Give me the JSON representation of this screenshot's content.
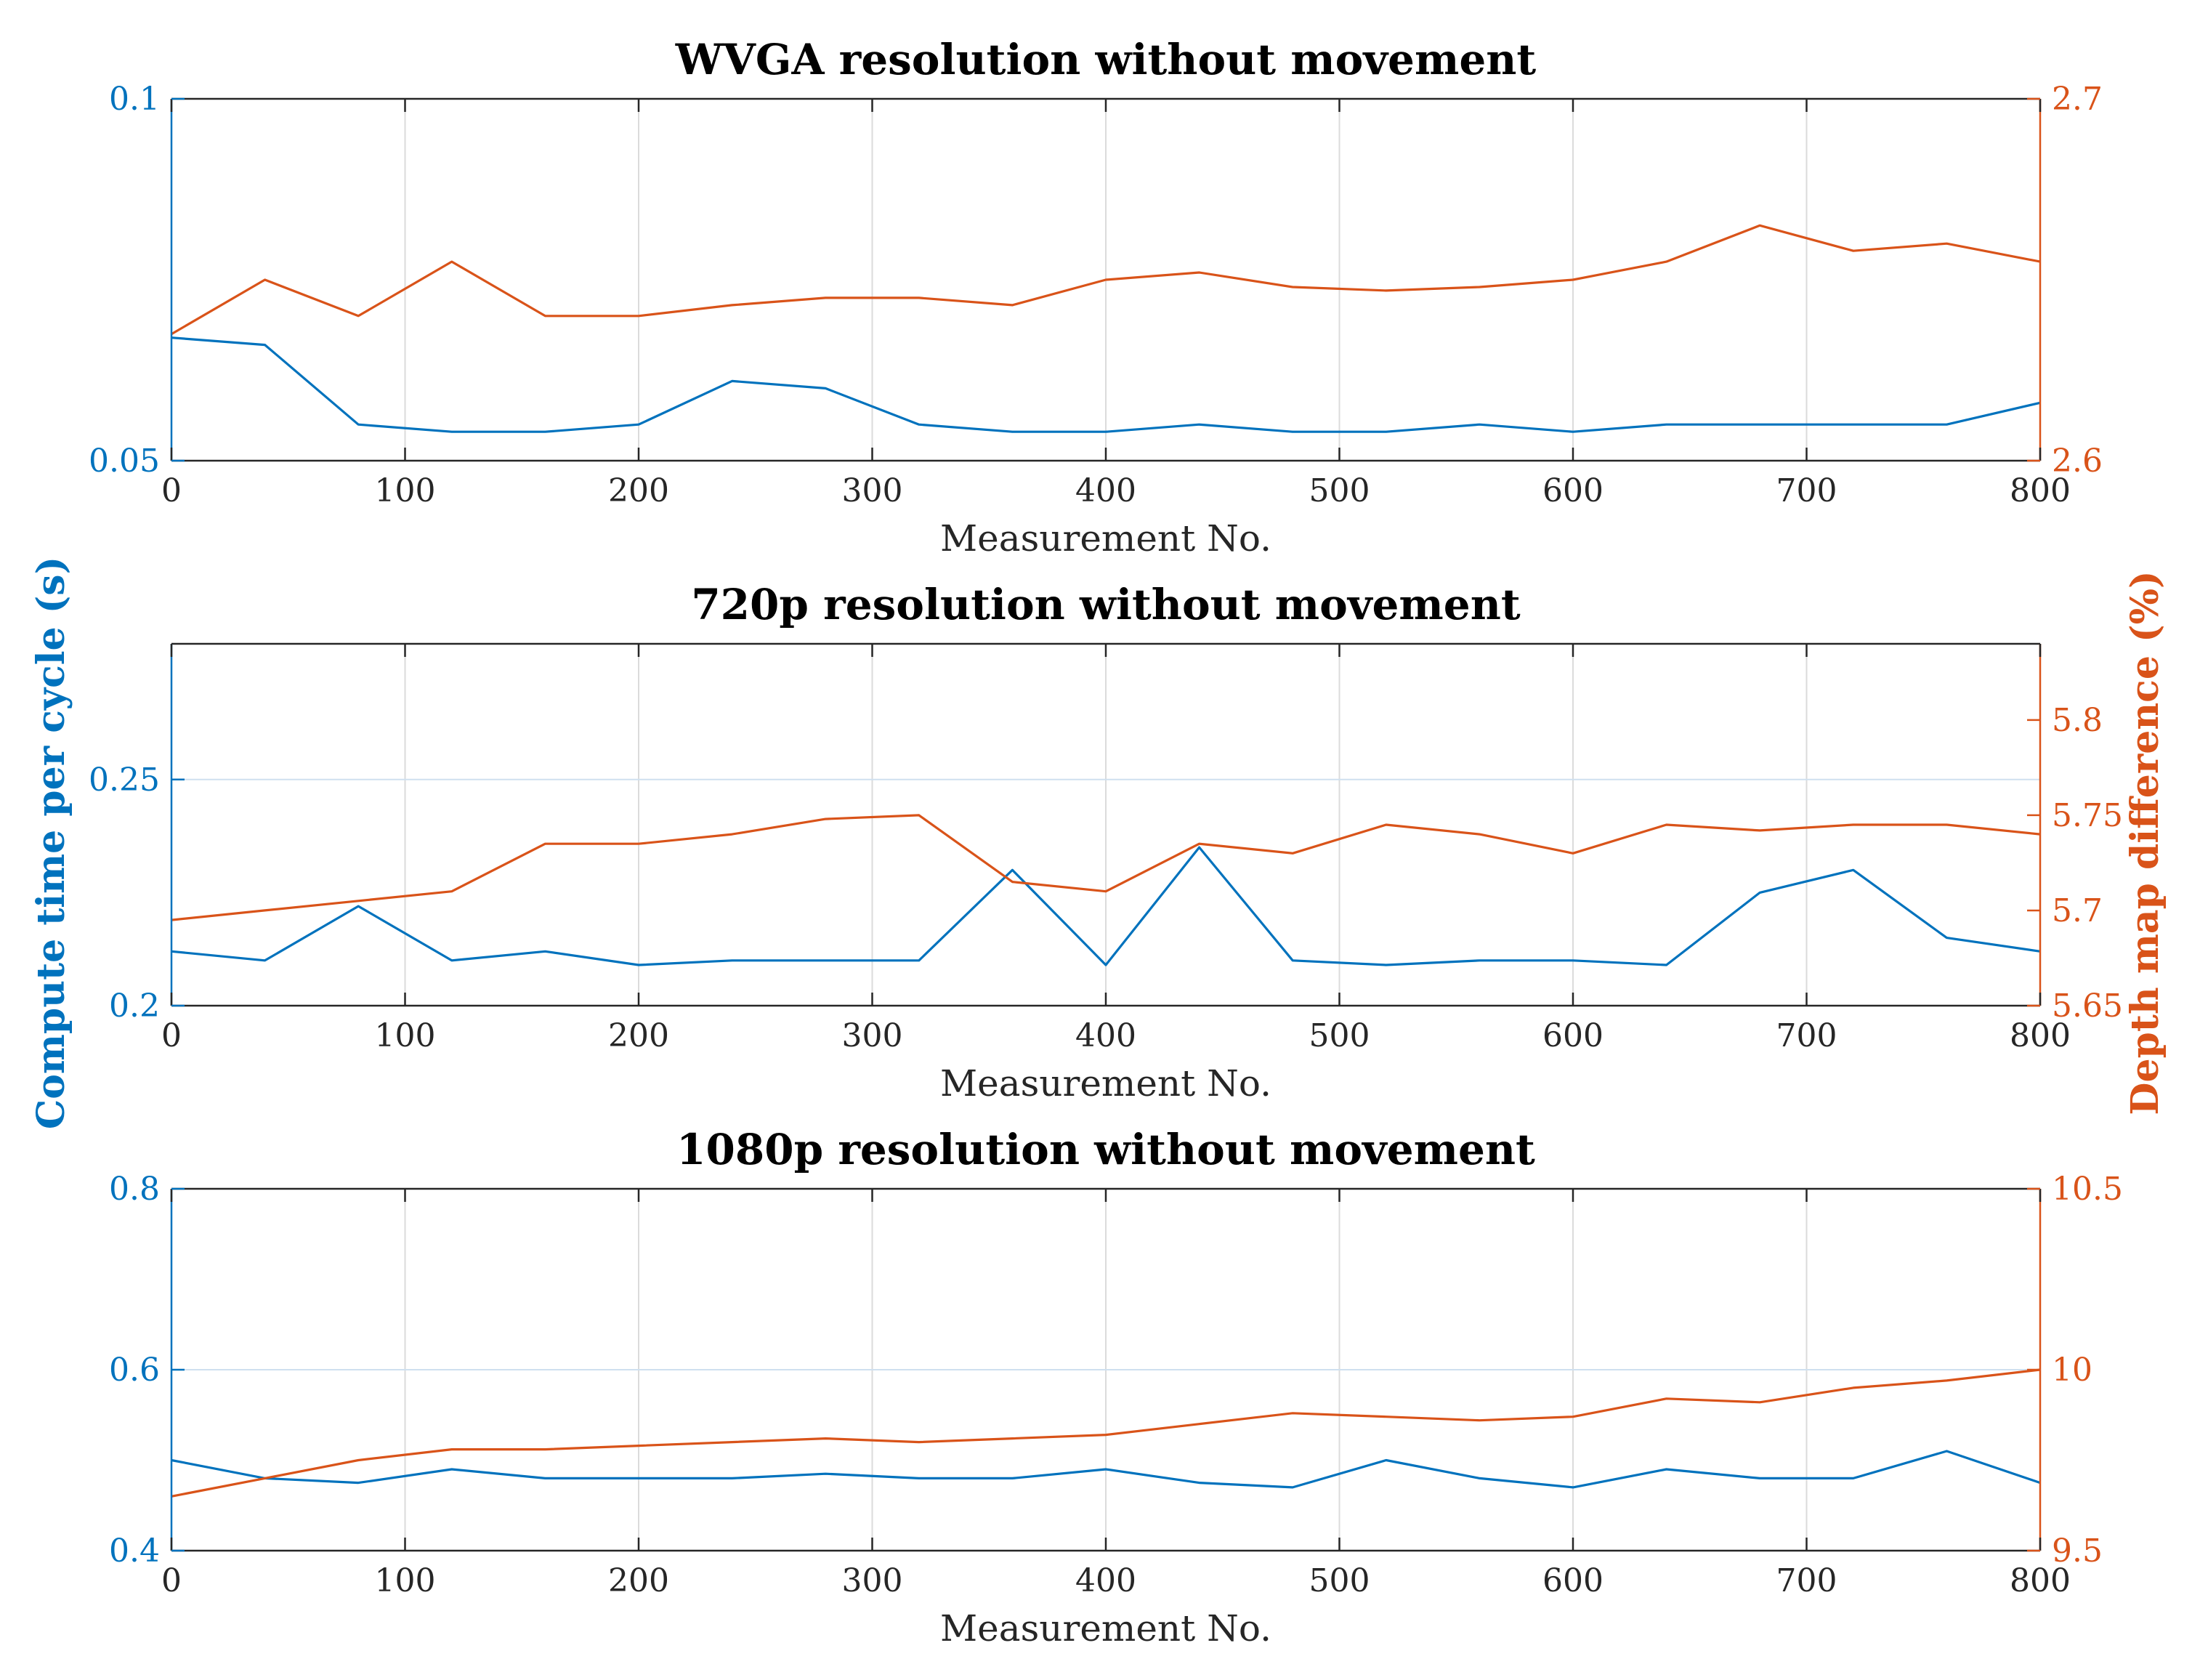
{
  "figure": {
    "shared_ylabel_left": "Compute time per cycle (s)",
    "shared_ylabel_right": "Depth map difference (%)",
    "colors": {
      "left": "#0072BD",
      "right": "#D95319",
      "grid": "#DBDBDB",
      "axis": "#262626"
    }
  },
  "chart_data": [
    {
      "type": "line",
      "title": "WVGA resolution without movement",
      "xlabel": "Measurement No.",
      "xlim": [
        0,
        800
      ],
      "xticks": [
        0,
        100,
        200,
        300,
        400,
        500,
        600,
        700,
        800
      ],
      "ylabel": "Compute time per cycle (s)",
      "ylim": [
        0.05,
        0.1
      ],
      "yticks": [
        0.05,
        0.1
      ],
      "ylim_right": [
        2.6,
        2.7
      ],
      "yticks_right": [
        2.6,
        2.7
      ],
      "grid": true,
      "series": [
        {
          "name": "Compute time per cycle (s)",
          "axis": "left",
          "color": "#0072BD",
          "x": [
            0,
            40,
            80,
            120,
            160,
            200,
            240,
            280,
            320,
            360,
            400,
            440,
            480,
            520,
            560,
            600,
            640,
            680,
            720,
            760,
            800
          ],
          "values": [
            0.067,
            0.066,
            0.055,
            0.054,
            0.054,
            0.055,
            0.061,
            0.06,
            0.055,
            0.054,
            0.054,
            0.055,
            0.054,
            0.054,
            0.055,
            0.054,
            0.055,
            0.055,
            0.055,
            0.055,
            0.058
          ]
        },
        {
          "name": "Depth map difference (%)",
          "axis": "right",
          "color": "#D95319",
          "x": [
            0,
            40,
            80,
            120,
            160,
            200,
            240,
            280,
            320,
            360,
            400,
            440,
            480,
            520,
            560,
            600,
            640,
            680,
            720,
            760,
            800
          ],
          "values": [
            2.635,
            2.65,
            2.64,
            2.655,
            2.64,
            2.64,
            2.643,
            2.645,
            2.645,
            2.643,
            2.65,
            2.652,
            2.648,
            2.647,
            2.648,
            2.65,
            2.655,
            2.665,
            2.658,
            2.66,
            2.655
          ]
        }
      ]
    },
    {
      "type": "line",
      "title": "720p resolution without movement",
      "xlabel": "Measurement No.",
      "xlim": [
        0,
        800
      ],
      "xticks": [
        0,
        100,
        200,
        300,
        400,
        500,
        600,
        700,
        800
      ],
      "ylabel": "Compute time per cycle (s)",
      "ylim": [
        0.2,
        0.28
      ],
      "yticks": [
        0.2,
        0.25
      ],
      "ylim_right": [
        5.65,
        5.84
      ],
      "yticks_right": [
        5.65,
        5.7,
        5.75,
        5.8
      ],
      "grid": true,
      "series": [
        {
          "name": "Compute time per cycle (s)",
          "axis": "left",
          "color": "#0072BD",
          "x": [
            0,
            40,
            80,
            120,
            160,
            200,
            240,
            280,
            320,
            360,
            400,
            440,
            480,
            520,
            560,
            600,
            640,
            680,
            720,
            760,
            800
          ],
          "values": [
            0.212,
            0.21,
            0.222,
            0.21,
            0.212,
            0.209,
            0.21,
            0.21,
            0.21,
            0.23,
            0.209,
            0.235,
            0.21,
            0.209,
            0.21,
            0.21,
            0.209,
            0.225,
            0.23,
            0.215,
            0.212
          ]
        },
        {
          "name": "Depth map difference (%)",
          "axis": "right",
          "color": "#D95319",
          "x": [
            0,
            40,
            80,
            120,
            160,
            200,
            240,
            280,
            320,
            360,
            400,
            440,
            480,
            520,
            560,
            600,
            640,
            680,
            720,
            760,
            800
          ],
          "values": [
            5.695,
            5.7,
            5.705,
            5.71,
            5.735,
            5.735,
            5.74,
            5.748,
            5.75,
            5.715,
            5.71,
            5.735,
            5.73,
            5.745,
            5.74,
            5.73,
            5.745,
            5.742,
            5.745,
            5.745,
            5.74
          ]
        }
      ]
    },
    {
      "type": "line",
      "title": "1080p resolution without movement",
      "xlabel": "Measurement No.",
      "xlim": [
        0,
        800
      ],
      "xticks": [
        0,
        100,
        200,
        300,
        400,
        500,
        600,
        700,
        800
      ],
      "ylabel": "Compute time per cycle (s)",
      "ylim": [
        0.4,
        0.8
      ],
      "yticks": [
        0.4,
        0.6,
        0.8
      ],
      "ylim_right": [
        9.5,
        10.5
      ],
      "yticks_right": [
        9.5,
        10,
        10.5
      ],
      "grid": true,
      "series": [
        {
          "name": "Compute time per cycle (s)",
          "axis": "left",
          "color": "#0072BD",
          "x": [
            0,
            40,
            80,
            120,
            160,
            200,
            240,
            280,
            320,
            360,
            400,
            440,
            480,
            520,
            560,
            600,
            640,
            680,
            720,
            760,
            800
          ],
          "values": [
            0.5,
            0.48,
            0.475,
            0.49,
            0.48,
            0.48,
            0.48,
            0.485,
            0.48,
            0.48,
            0.49,
            0.475,
            0.47,
            0.5,
            0.48,
            0.47,
            0.49,
            0.48,
            0.48,
            0.51,
            0.475
          ]
        },
        {
          "name": "Depth map difference (%)",
          "axis": "right",
          "color": "#D95319",
          "x": [
            0,
            40,
            80,
            120,
            160,
            200,
            240,
            280,
            320,
            360,
            400,
            440,
            480,
            520,
            560,
            600,
            640,
            680,
            720,
            760,
            800
          ],
          "values": [
            9.65,
            9.7,
            9.75,
            9.78,
            9.78,
            9.79,
            9.8,
            9.81,
            9.8,
            9.81,
            9.82,
            9.85,
            9.88,
            9.87,
            9.86,
            9.87,
            9.92,
            9.91,
            9.95,
            9.97,
            10.0
          ]
        }
      ]
    }
  ]
}
